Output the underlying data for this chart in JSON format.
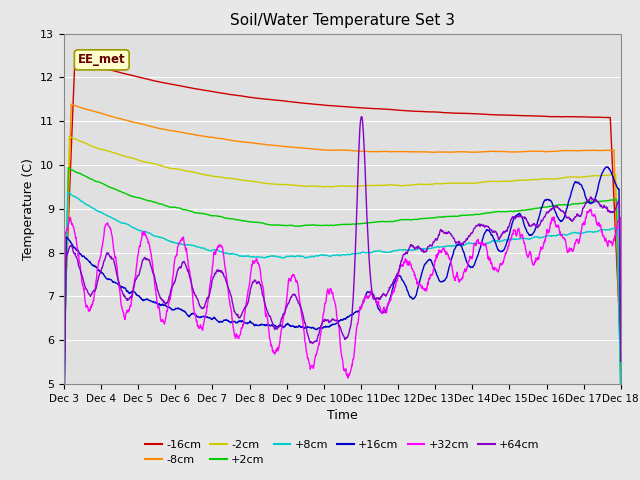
{
  "title": "Soil/Water Temperature Set 3",
  "xlabel": "Time",
  "ylabel": "Temperature (C)",
  "ylim": [
    5.0,
    13.0
  ],
  "yticks": [
    5.0,
    6.0,
    7.0,
    8.0,
    9.0,
    10.0,
    11.0,
    12.0,
    13.0
  ],
  "xtick_labels": [
    "Dec 3",
    "Dec 4",
    "Dec 5",
    "Dec 6",
    "Dec 7",
    "Dec 8",
    "Dec 9",
    "Dec 10",
    "Dec 11",
    "Dec 12",
    "Dec 13",
    "Dec 14",
    "Dec 15",
    "Dec 16",
    "Dec 17",
    "Dec 18"
  ],
  "annotation_text": "EE_met",
  "series_colors": {
    "-16cm": "#cc0000",
    "-8cm": "#ff8800",
    "-2cm": "#cccc00",
    "+2cm": "#00cc00",
    "+8cm": "#00cccc",
    "+16cm": "#0000cc",
    "+32cm": "#ff00ff",
    "+64cm": "#8800cc"
  },
  "bg_color": "#e0e0e0",
  "grid_color": "#ffffff",
  "fig_facecolor": "#e8e8e8"
}
